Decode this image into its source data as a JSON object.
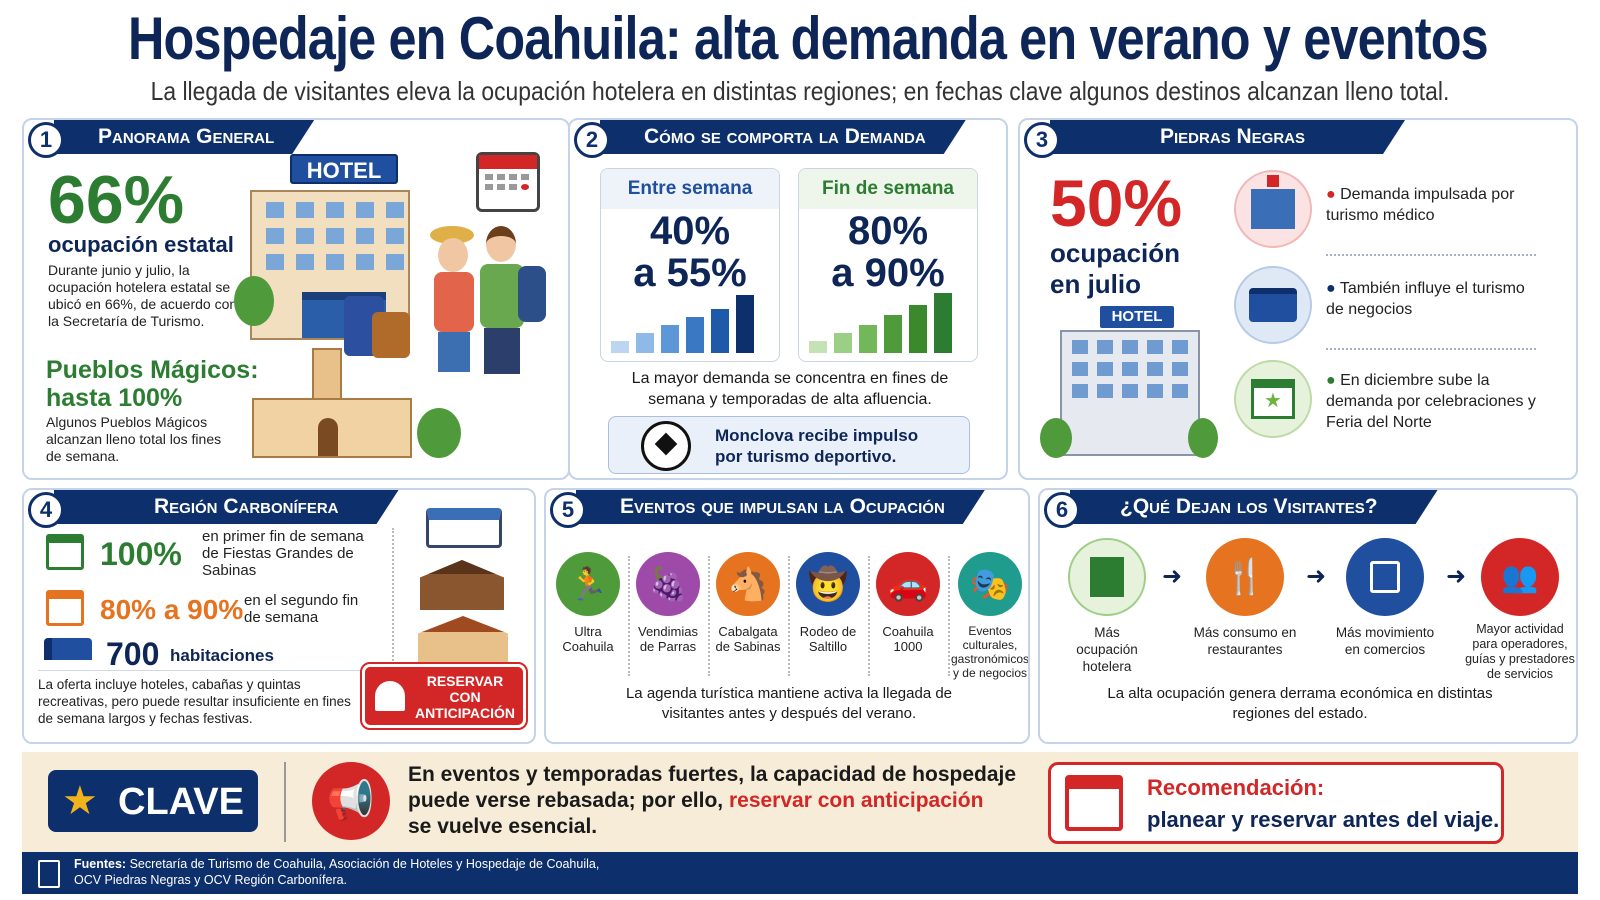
{
  "title": "Hospedaje en Coahuila: alta demanda en verano y eventos",
  "subtitle": "La llegada de visitantes eleva la ocupación hotelera en distintas regiones; en fechas clave algunos destinos alcanzan lleno total.",
  "p1": {
    "num": "1",
    "head": "Panorama General",
    "hotel_sign": "HOTEL",
    "big": "66%",
    "big_label": "ocupación estatal",
    "desc": "Durante junio y julio, la ocupación hotelera estatal se ubicó en 66%, de acuerdo con la Secretaría de Turismo.",
    "pm_title": "Pueblos Mágicos: hasta 100%",
    "pm_desc": "Algunos Pueblos Mágicos alcanzan lleno total los fines de semana."
  },
  "p2": {
    "num": "2",
    "head": "Cómo se comporta la Demanda",
    "c1_label": "Entre semana",
    "c1_val1": "40%",
    "c1_val2": "a 55%",
    "c2_label": "Fin de semana",
    "c2_val1": "80%",
    "c2_val2": "a 90%",
    "note": "La mayor demanda se concentra en fines de semana y temporadas de alta afluencia.",
    "box": "Monclova recibe impulso por turismo deportivo."
  },
  "p3": {
    "num": "3",
    "head": "Piedras Negras",
    "big": "50%",
    "big_label": "ocupación en julio",
    "hotel_sign": "HOTEL",
    "items": [
      "Demanda impulsada por turismo médico",
      "También influye el turismo de negocios",
      "En diciembre sube la demanda por celebraciones y Feria del Norte"
    ]
  },
  "p4": {
    "num": "4",
    "head": "Región Carbonífera",
    "r1_val": "100%",
    "r1_txt": "en primer fin de semana de Fiestas Grandes de Sabinas",
    "r2_val": "80% a 90%",
    "r2_txt": "en el segundo fin de semana",
    "r3_val": "700",
    "r3_txt": "habitaciones",
    "desc": "La oferta incluye hoteles, cabañas y quintas recreativas, pero puede resultar insuficiente en fines de semana largos y fechas festivas.",
    "btn": "RESERVAR CON ANTICIPACIÓN"
  },
  "p5": {
    "num": "5",
    "head": "Eventos que impulsan la Ocupación",
    "events": [
      "Ultra Coahuila",
      "Vendimias de Parras",
      "Cabalgata de Sabinas",
      "Rodeo de Saltillo",
      "Coahuila 1000",
      "Eventos culturales, gastronómicos y de negocios"
    ],
    "note": "La agenda turística mantiene activa la llegada de visitantes antes y después del verano."
  },
  "p6": {
    "num": "6",
    "head": "¿Qué Dejan los Visitantes?",
    "items": [
      "Más ocupación hotelera",
      "Más consumo en restaurantes",
      "Más movimiento en comercios",
      "Mayor actividad para operadores, guías y prestadores de servicios"
    ],
    "note": "La alta ocupación genera derrama económica en distintas regiones del estado."
  },
  "clave": {
    "badge": "CLAVE",
    "text1": "En eventos y temporadas fuertes, la capacidad de hospedaje",
    "text2a": "puede verse rebasada; por ello,",
    "text2b": "reservar con anticipación",
    "text3": "se vuelve esencial.",
    "rec_title": "Recomendación:",
    "rec_text": "planear y reservar antes del viaje."
  },
  "footer": {
    "label": "Fuentes:",
    "text": "Secretaría de Turismo de Coahuila, Asociación de Hoteles y Hospedaje de Coahuila,",
    "text2": "OCV Piedras Negras y OCV Región Carbonífera."
  },
  "colors": {
    "navy": "#0d2f6b",
    "green": "#2c7d32",
    "red": "#d32626",
    "orange": "#e5731f"
  }
}
